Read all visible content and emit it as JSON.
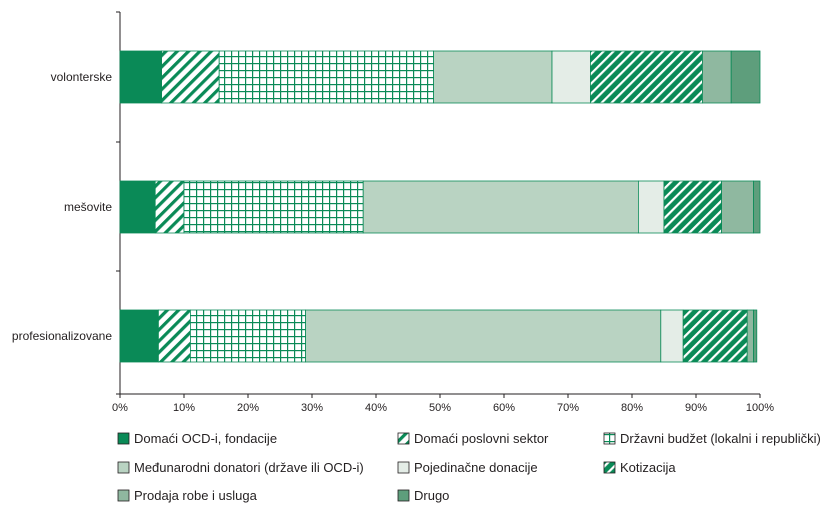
{
  "chart_data": {
    "type": "bar",
    "orientation": "horizontal",
    "stacked": true,
    "percent": true,
    "categories": [
      "volonterske",
      "mešovite",
      "profesionalizovane"
    ],
    "x_ticks": [
      "0%",
      "10%",
      "20%",
      "30%",
      "40%",
      "50%",
      "60%",
      "70%",
      "80%",
      "90%",
      "100%"
    ],
    "xlim": [
      0,
      100
    ],
    "grid": false,
    "legend_position": "bottom",
    "series": [
      {
        "name": "Domaći OCD-i, fondacije",
        "values": [
          6.5,
          5.5,
          6.0
        ],
        "color": "#0a8a57",
        "pattern": "solid"
      },
      {
        "name": "Domaći poslovni sektor",
        "values": [
          9.0,
          4.5,
          5.0
        ],
        "color": "#0a8a57",
        "pattern": "diagonal-light"
      },
      {
        "name": "Državni budžet (lokalni i republički)",
        "values": [
          33.5,
          28.0,
          18.0
        ],
        "color": "#0a8a57",
        "pattern": "grid"
      },
      {
        "name": "Međunarodni donatori (države ili OCD-i)",
        "values": [
          18.5,
          43.0,
          55.5
        ],
        "color": "#b9d3c2",
        "pattern": "solid"
      },
      {
        "name": "Pojedinačne donacije",
        "values": [
          6.0,
          4.0,
          3.5
        ],
        "color": "#e4ede7",
        "pattern": "solid"
      },
      {
        "name": "Kotizacija",
        "values": [
          17.5,
          9.0,
          10.0
        ],
        "color": "#0a8a57",
        "pattern": "diagonal-dense"
      },
      {
        "name": "Prodaja robe i usluga",
        "values": [
          4.5,
          5.0,
          1.0
        ],
        "color": "#8fb8a0",
        "pattern": "solid"
      },
      {
        "name": "Drugo",
        "values": [
          4.5,
          1.0,
          0.5
        ],
        "color": "#5e9e7c",
        "pattern": "solid"
      }
    ]
  }
}
